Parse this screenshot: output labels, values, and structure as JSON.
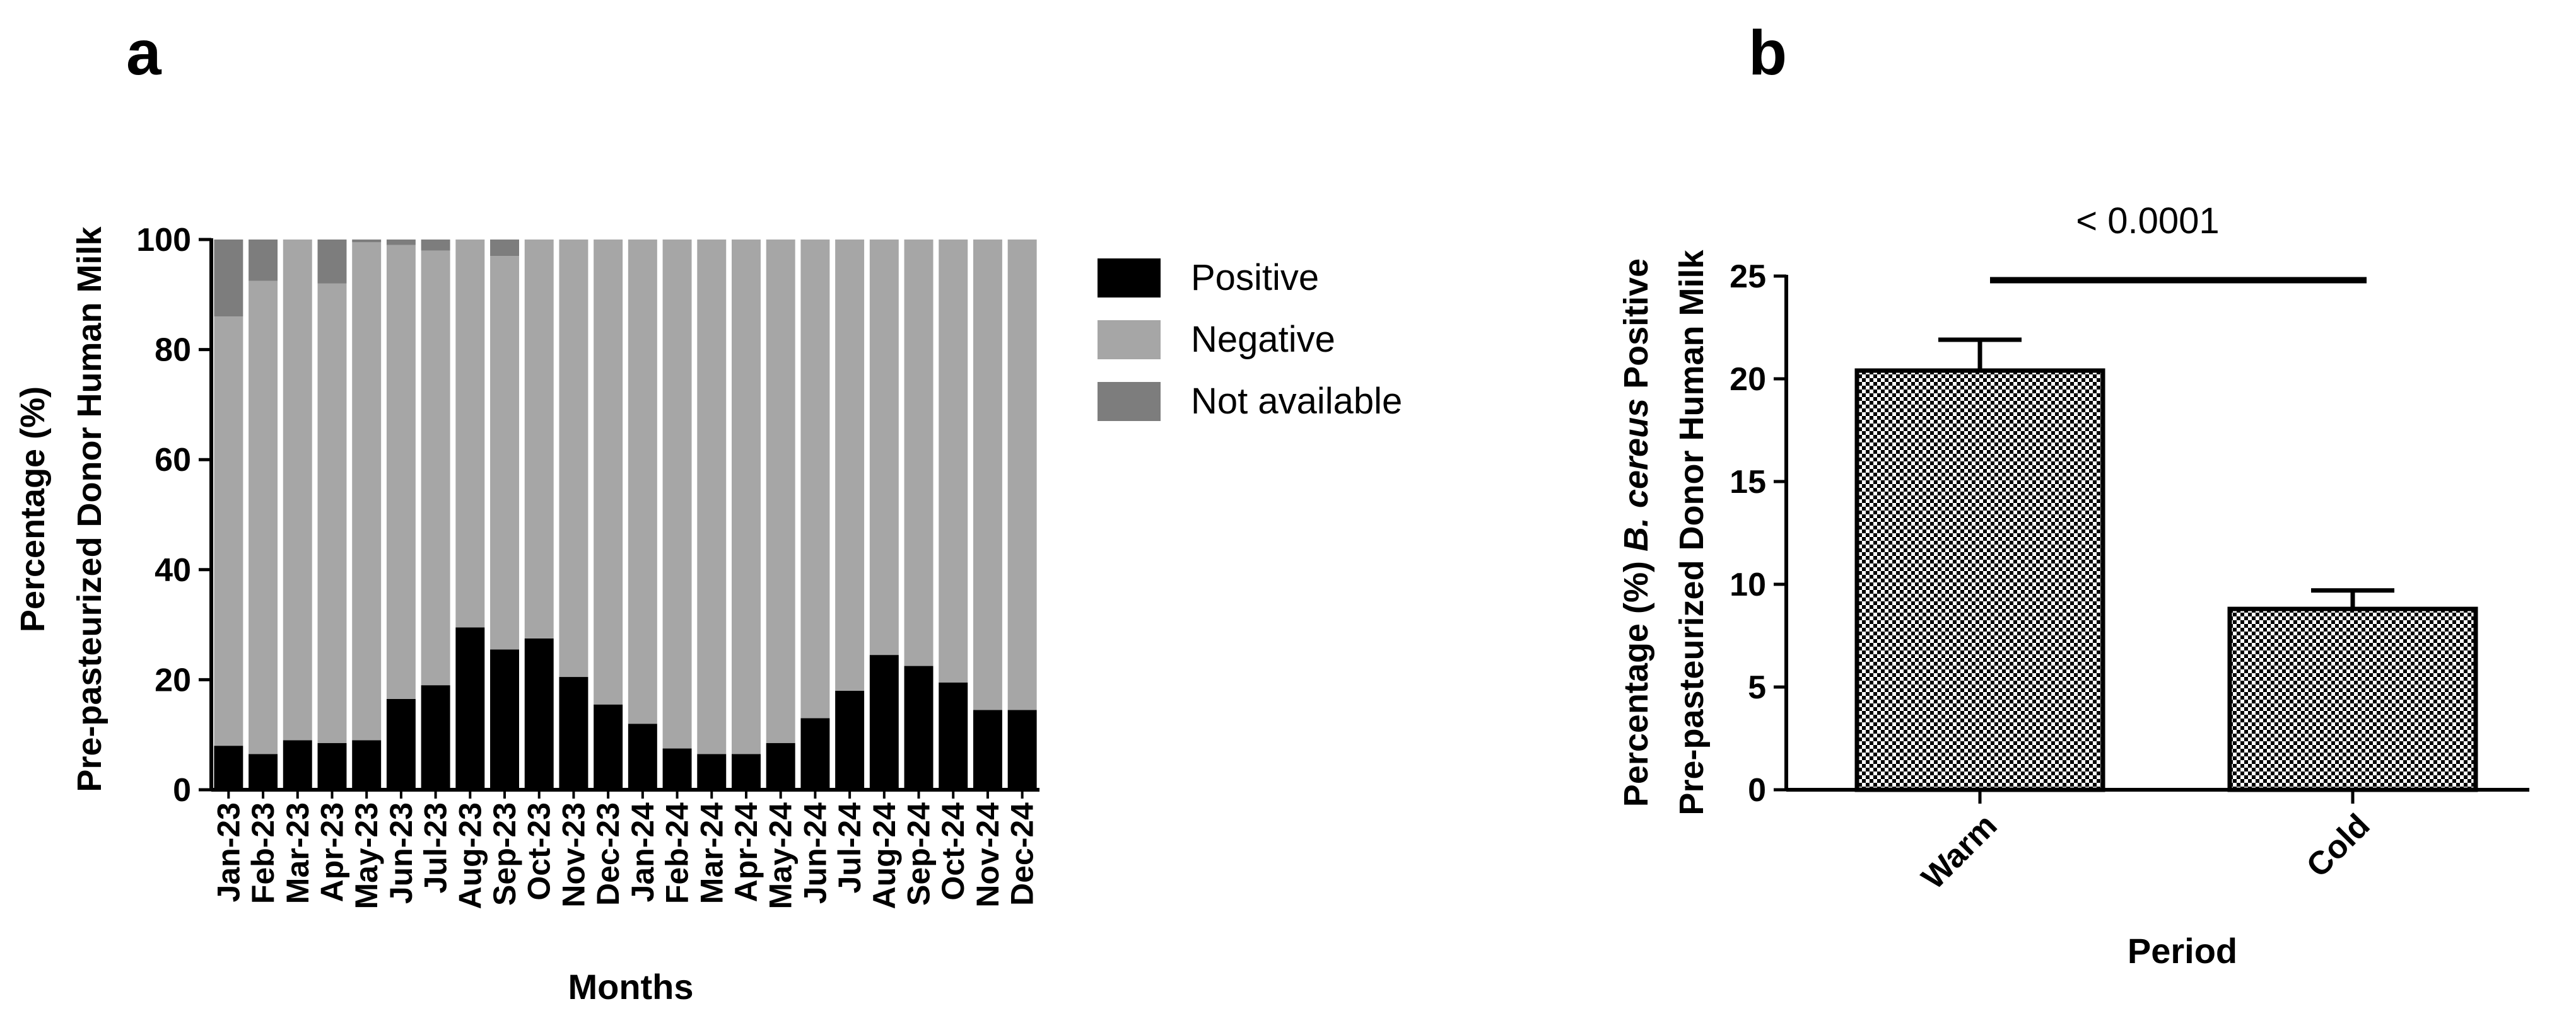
{
  "chart_data": [
    {
      "panel_label": "a",
      "type": "bar",
      "stacked": true,
      "categories": [
        "Jan-23",
        "Feb-23",
        "Mar-23",
        "Apr-23",
        "May-23",
        "Jun-23",
        "Jul-23",
        "Aug-23",
        "Sep-23",
        "Oct-23",
        "Nov-23",
        "Dec-23",
        "Jan-24",
        "Feb-24",
        "Mar-24",
        "Apr-24",
        "May-24",
        "Jun-24",
        "Jul-24",
        "Aug-24",
        "Sep-24",
        "Oct-24",
        "Nov-24",
        "Dec-24"
      ],
      "series": [
        {
          "name": "Positive",
          "color": "#000000",
          "values": [
            8,
            6.5,
            9,
            8.5,
            9,
            16.5,
            19,
            29.5,
            25.5,
            27.5,
            20.5,
            15.5,
            12,
            7.5,
            6.5,
            6.5,
            8.5,
            13,
            18,
            24.5,
            22.5,
            19.5,
            14.5,
            14.5
          ]
        },
        {
          "name": "Negative",
          "color": "#a6a6a6",
          "values": [
            78,
            86,
            91,
            83.5,
            90.5,
            82.5,
            79,
            70.5,
            71.5,
            72.5,
            79.5,
            84.5,
            88,
            92.5,
            93.5,
            93.5,
            91.5,
            87,
            82,
            75.5,
            77.5,
            80.5,
            85.5,
            85.5
          ]
        },
        {
          "name": "Not available",
          "color": "#7d7d7d",
          "values": [
            14,
            7.5,
            0,
            8,
            0.5,
            1,
            2,
            0,
            3,
            0,
            0,
            0,
            0,
            0,
            0,
            0,
            0,
            0,
            0,
            0,
            0,
            0,
            0,
            0
          ]
        }
      ],
      "xlabel": "Months",
      "ylabel": [
        "Percentage (%)",
        "Pre-pasteurized Donor Human Milk"
      ],
      "ylim": [
        0,
        100
      ],
      "yticks": [
        0,
        20,
        40,
        60,
        80,
        100
      ],
      "legend_position": "right"
    },
    {
      "panel_label": "b",
      "type": "bar",
      "categories": [
        "Warm",
        "Cold"
      ],
      "values": [
        20.4,
        8.8
      ],
      "errors": [
        1.5,
        0.9
      ],
      "fill_pattern": "checkered",
      "xlabel": "Period",
      "ylabel_line1": {
        "before": "Percentage (%) ",
        "italic": "B. cereus",
        "after": " Positive"
      },
      "ylabel_line2": "Pre-pasteurized Donor Human  Milk",
      "ylim": [
        0,
        25
      ],
      "yticks": [
        0,
        5,
        10,
        15,
        20,
        25
      ],
      "annotation": "< 0.0001"
    }
  ]
}
